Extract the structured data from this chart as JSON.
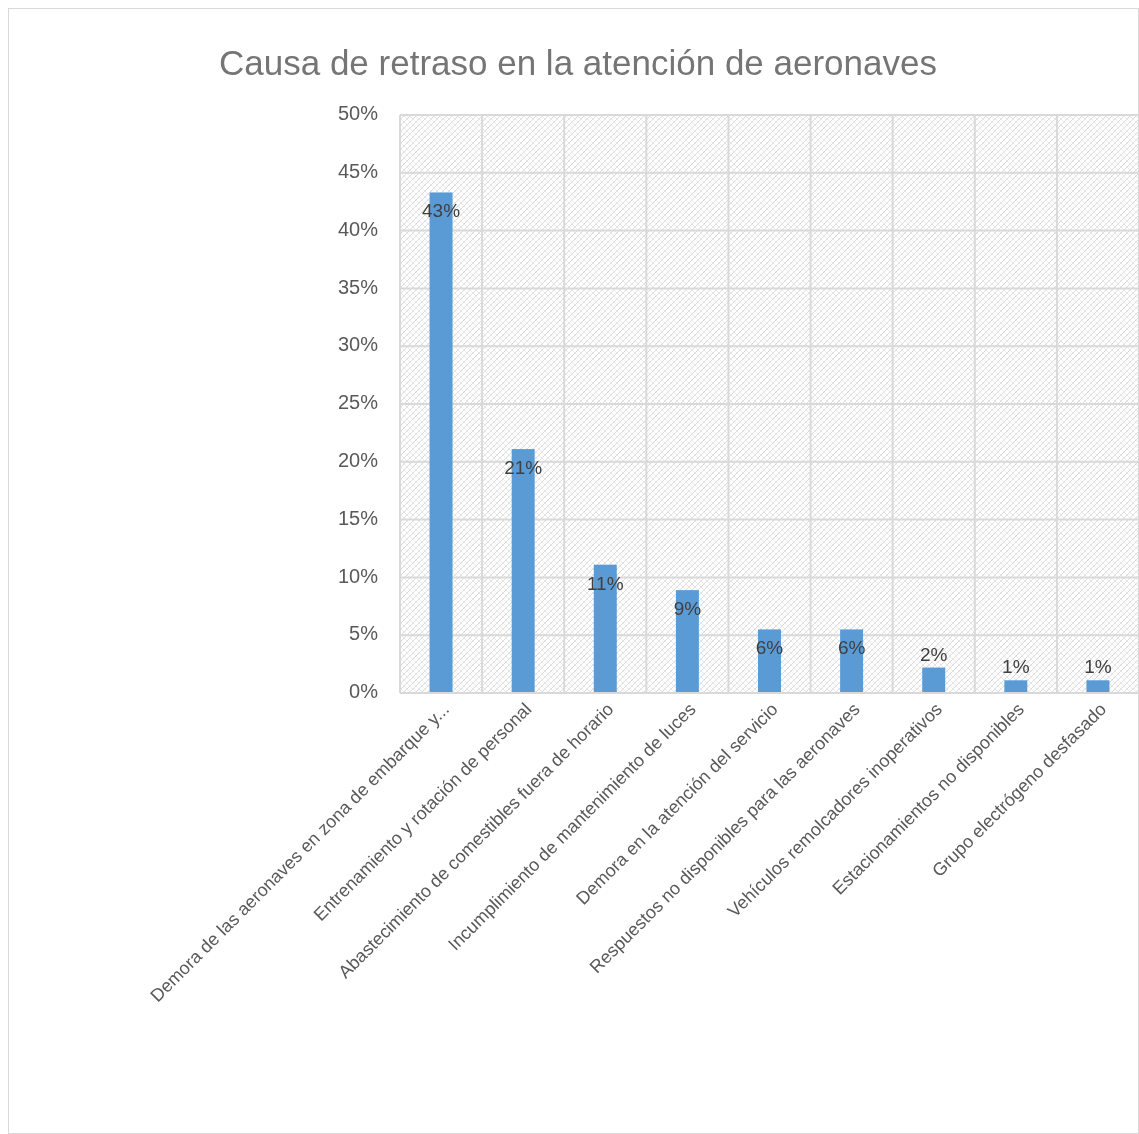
{
  "chart_data": {
    "type": "bar",
    "title": "Causa de retraso en la atención de aeronaves",
    "categories": [
      "Demora de las aeronaves en zona de embarque y...",
      "Entrenamiento y rotación de personal",
      "Abastecimiento de comestibles fuera de horario",
      "Incumplimiento de mantenimiento de luces",
      "Demora en la atención del servicio",
      "Respuestos no disponibles para las aeronaves",
      "Vehículos remolcadores inoperativos",
      "Estacionamientos no disponibles",
      "Grupo electrógeno desfasado"
    ],
    "values": [
      43.3,
      21.1,
      11.1,
      8.9,
      5.5,
      5.5,
      2.2,
      1.1,
      1.1
    ],
    "value_labels": [
      "43%",
      "21%",
      "11%",
      "9%",
      "6%",
      "6%",
      "2%",
      "1%",
      "1%"
    ],
    "color": "#5b9bd5",
    "ylim": [
      0,
      50
    ],
    "yticks": [
      {
        "value": 0,
        "label": "0%"
      },
      {
        "value": 5,
        "label": "5%"
      },
      {
        "value": 10,
        "label": "10%"
      },
      {
        "value": 15,
        "label": "15%"
      },
      {
        "value": 20,
        "label": "20%"
      },
      {
        "value": 25,
        "label": "25%"
      },
      {
        "value": 30,
        "label": "30%"
      },
      {
        "value": 35,
        "label": "35%"
      },
      {
        "value": 40,
        "label": "40%"
      },
      {
        "value": 45,
        "label": "45%"
      },
      {
        "value": 50,
        "label": "50%"
      }
    ],
    "grid": true
  }
}
